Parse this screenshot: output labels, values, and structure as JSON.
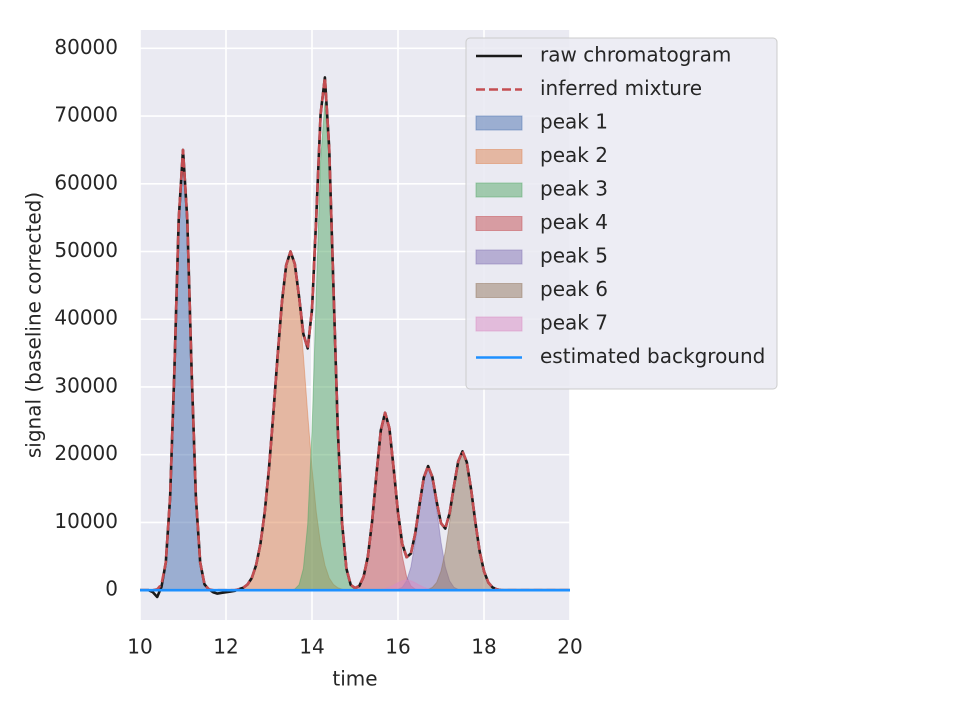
{
  "chart_data": {
    "type": "line",
    "xlabel": "time",
    "ylabel": "signal (baseline corrected)",
    "xlim": [
      10,
      20
    ],
    "ylim": [
      -4400,
      82700
    ],
    "xticks": [
      10,
      12,
      14,
      16,
      18,
      20
    ],
    "yticks": [
      0,
      10000,
      20000,
      30000,
      40000,
      50000,
      60000,
      70000,
      80000
    ],
    "grid": true,
    "legend": "upper right",
    "x": [
      10,
      10.1,
      10.2,
      10.3,
      10.4,
      10.5,
      10.6,
      10.7,
      10.8,
      10.9,
      11,
      11.1,
      11.2,
      11.3,
      11.4,
      11.5,
      11.6,
      11.7,
      11.8,
      11.9,
      12,
      12.1,
      12.2,
      12.3,
      12.4,
      12.5,
      12.6,
      12.7,
      12.8,
      12.9,
      13,
      13.1,
      13.2,
      13.3,
      13.4,
      13.5,
      13.6,
      13.7,
      13.8,
      13.9,
      14,
      14.1,
      14.2,
      14.3,
      14.4,
      14.5,
      14.6,
      14.7,
      14.8,
      14.9,
      15,
      15.1,
      15.2,
      15.3,
      15.4,
      15.5,
      15.6,
      15.7,
      15.8,
      15.9,
      16,
      16.1,
      16.2,
      16.3,
      16.4,
      16.5,
      16.6,
      16.7,
      16.8,
      16.9,
      17,
      17.1,
      17.2,
      17.3,
      17.4,
      17.5,
      17.6,
      17.7,
      17.8,
      17.9,
      18,
      18.1,
      18.2,
      18.3,
      18.4,
      18.5,
      18.6,
      18.7,
      18.8,
      18.9,
      19,
      19.1,
      19.2,
      19.3,
      19.4,
      19.5,
      19.6,
      19.7,
      19.8,
      19.9,
      20
    ],
    "series": [
      {
        "name": "raw chromatogram",
        "color": "#1a1a1a",
        "style": "line",
        "values": [
          0,
          0,
          0,
          -300,
          -1000,
          500,
          4100,
          13700,
          32500,
          54700,
          65000,
          54700,
          32500,
          13700,
          4100,
          860,
          130,
          -300,
          -500,
          -400,
          -300,
          -200,
          -100,
          140,
          360,
          840,
          1800,
          3700,
          6800,
          11500,
          18000,
          26000,
          34600,
          42500,
          48000,
          50000,
          48160,
          43300,
          37800,
          35700,
          41400,
          55200,
          70300,
          75700,
          65300,
          44540,
          23760,
          9840,
          3200,
          800,
          320,
          630,
          2000,
          5000,
          10300,
          17200,
          23580,
          26200,
          23920,
          17930,
          11500,
          6810,
          4870,
          5410,
          8350,
          12630,
          16620,
          18320,
          16690,
          13050,
          9900,
          9100,
          11370,
          15330,
          19010,
          20500,
          18900,
          14900,
          10000,
          5700,
          2800,
          1150,
          410,
          120,
          0,
          0,
          0,
          0,
          0,
          0,
          0,
          0,
          0,
          0,
          0,
          0,
          0,
          0,
          0,
          0,
          0
        ]
      },
      {
        "name": "inferred mixture",
        "color": "#c44e52",
        "style": "dashed",
        "values": [
          0,
          0,
          0,
          0,
          130,
          860,
          4100,
          13700,
          32500,
          54700,
          65000,
          54700,
          32500,
          13700,
          4100,
          860,
          130,
          0,
          0,
          0,
          0,
          0,
          0,
          140,
          360,
          840,
          1800,
          3700,
          6800,
          11500,
          18000,
          26000,
          34600,
          42500,
          48000,
          50000,
          48160,
          43300,
          37800,
          35700,
          41400,
          55200,
          70300,
          75700,
          65300,
          44540,
          23760,
          9840,
          3200,
          800,
          320,
          630,
          2000,
          5000,
          10300,
          17200,
          23580,
          26200,
          23920,
          17930,
          11500,
          6810,
          4870,
          5410,
          8350,
          12630,
          16620,
          18320,
          16690,
          13050,
          9900,
          9100,
          11370,
          15330,
          19010,
          20500,
          18900,
          14900,
          10000,
          5700,
          2800,
          1150,
          410,
          120,
          0,
          0,
          0,
          0,
          0,
          0,
          0,
          0,
          0,
          0,
          0,
          0,
          0,
          0,
          0,
          0,
          0
        ]
      },
      {
        "name": "peak 1",
        "color": "#4c72b0",
        "style": "area",
        "values": [
          0,
          0,
          0,
          0,
          130,
          860,
          4100,
          13700,
          32500,
          54700,
          65000,
          54700,
          32500,
          13700,
          4100,
          860,
          130,
          0,
          0,
          0,
          0,
          0,
          0,
          0,
          0,
          0,
          0,
          0,
          0,
          0,
          0,
          0,
          0,
          0,
          0,
          0,
          0,
          0,
          0,
          0,
          0,
          0,
          0,
          0,
          0,
          0,
          0,
          0,
          0,
          0,
          0,
          0,
          0,
          0,
          0,
          0,
          0,
          0,
          0,
          0,
          0,
          0,
          0,
          0,
          0,
          0,
          0,
          0,
          0,
          0,
          0,
          0,
          0,
          0,
          0,
          0,
          0,
          0,
          0,
          0,
          0,
          0,
          0,
          0,
          0,
          0,
          0,
          0,
          0,
          0,
          0,
          0,
          0,
          0,
          0,
          0,
          0,
          0,
          0,
          0,
          0
        ]
      },
      {
        "name": "peak 2",
        "color": "#dd8452",
        "style": "area",
        "values": [
          0,
          0,
          0,
          0,
          0,
          0,
          0,
          0,
          0,
          0,
          0,
          0,
          0,
          0,
          0,
          0,
          0,
          0,
          0,
          0,
          0,
          0,
          0,
          140,
          360,
          840,
          1800,
          3700,
          6800,
          11500,
          18000,
          26000,
          34600,
          42500,
          48000,
          50000,
          48000,
          42500,
          34600,
          26000,
          18000,
          11500,
          6800,
          3700,
          1800,
          840,
          360,
          140,
          0,
          0,
          0,
          0,
          0,
          0,
          0,
          0,
          0,
          0,
          0,
          0,
          0,
          0,
          0,
          0,
          0,
          0,
          0,
          0,
          0,
          0,
          0,
          0,
          0,
          0,
          0,
          0,
          0,
          0,
          0,
          0,
          0,
          0,
          0,
          0,
          0,
          0,
          0,
          0,
          0,
          0,
          0,
          0,
          0,
          0,
          0,
          0,
          0,
          0,
          0,
          0,
          0
        ]
      },
      {
        "name": "peak 3",
        "color": "#55a868",
        "style": "area",
        "values": [
          0,
          0,
          0,
          0,
          0,
          0,
          0,
          0,
          0,
          0,
          0,
          0,
          0,
          0,
          0,
          0,
          0,
          0,
          0,
          0,
          0,
          0,
          0,
          0,
          0,
          0,
          0,
          0,
          0,
          0,
          0,
          0,
          0,
          0,
          0,
          0,
          160,
          800,
          3200,
          9700,
          23400,
          43700,
          63500,
          72000,
          63500,
          43700,
          23400,
          9700,
          3200,
          800,
          160,
          0,
          0,
          0,
          0,
          0,
          0,
          0,
          0,
          0,
          0,
          0,
          0,
          0,
          0,
          0,
          0,
          0,
          0,
          0,
          0,
          0,
          0,
          0,
          0,
          0,
          0,
          0,
          0,
          0,
          0,
          0,
          0,
          0,
          0,
          0,
          0,
          0,
          0,
          0,
          0,
          0,
          0,
          0,
          0,
          0,
          0,
          0,
          0,
          0,
          0
        ]
      },
      {
        "name": "peak 4",
        "color": "#c44e52",
        "style": "area",
        "values": [
          0,
          0,
          0,
          0,
          0,
          0,
          0,
          0,
          0,
          0,
          0,
          0,
          0,
          0,
          0,
          0,
          0,
          0,
          0,
          0,
          0,
          0,
          0,
          0,
          0,
          0,
          0,
          0,
          0,
          0,
          0,
          0,
          0,
          0,
          0,
          0,
          0,
          0,
          0,
          0,
          0,
          0,
          0,
          0,
          0,
          0,
          0,
          0,
          0,
          0,
          160,
          630,
          2000,
          5000,
          10300,
          17200,
          23500,
          26000,
          23500,
          17200,
          10300,
          5000,
          2000,
          630,
          160,
          0,
          0,
          0,
          0,
          0,
          0,
          0,
          0,
          0,
          0,
          0,
          0,
          0,
          0,
          0,
          0,
          0,
          0,
          0,
          0,
          0,
          0,
          0,
          0,
          0,
          0,
          0,
          0,
          0,
          0,
          0,
          0,
          0,
          0,
          0,
          0
        ]
      },
      {
        "name": "peak 5",
        "color": "#8172b3",
        "style": "area",
        "values": [
          0,
          0,
          0,
          0,
          0,
          0,
          0,
          0,
          0,
          0,
          0,
          0,
          0,
          0,
          0,
          0,
          0,
          0,
          0,
          0,
          0,
          0,
          0,
          0,
          0,
          0,
          0,
          0,
          0,
          0,
          0,
          0,
          0,
          0,
          0,
          0,
          0,
          0,
          0,
          0,
          0,
          0,
          0,
          0,
          0,
          0,
          0,
          0,
          0,
          0,
          0,
          0,
          0,
          0,
          0,
          0,
          0,
          0,
          0,
          0,
          110,
          430,
          1370,
          3400,
          7100,
          11900,
          16200,
          18000,
          16200,
          11900,
          7100,
          3400,
          1370,
          430,
          110,
          0,
          0,
          0,
          0,
          0,
          0,
          0,
          0,
          0,
          0,
          0,
          0,
          0,
          0,
          0,
          0,
          0,
          0,
          0,
          0,
          0,
          0,
          0,
          0,
          0,
          0
        ]
      },
      {
        "name": "peak 6",
        "color": "#937860",
        "style": "area",
        "values": [
          0,
          0,
          0,
          0,
          0,
          0,
          0,
          0,
          0,
          0,
          0,
          0,
          0,
          0,
          0,
          0,
          0,
          0,
          0,
          0,
          0,
          0,
          0,
          0,
          0,
          0,
          0,
          0,
          0,
          0,
          0,
          0,
          0,
          0,
          0,
          0,
          0,
          0,
          0,
          0,
          0,
          0,
          0,
          0,
          0,
          0,
          0,
          0,
          0,
          0,
          0,
          0,
          0,
          0,
          0,
          0,
          0,
          0,
          0,
          0,
          0,
          0,
          0,
          0,
          0,
          0,
          0,
          120,
          410,
          1150,
          2800,
          5700,
          10000,
          14900,
          18900,
          20500,
          18900,
          14900,
          10000,
          5700,
          2800,
          1150,
          410,
          120,
          0,
          0,
          0,
          0,
          0,
          0,
          0,
          0,
          0,
          0,
          0,
          0,
          0,
          0,
          0,
          0,
          0
        ]
      },
      {
        "name": "peak 7",
        "color": "#da8bc3",
        "style": "area",
        "values": [
          0,
          0,
          0,
          0,
          0,
          0,
          0,
          0,
          0,
          0,
          0,
          0,
          0,
          0,
          0,
          0,
          0,
          0,
          0,
          0,
          0,
          0,
          0,
          0,
          0,
          0,
          0,
          0,
          0,
          0,
          0,
          0,
          0,
          0,
          0,
          0,
          0,
          0,
          0,
          0,
          0,
          0,
          0,
          0,
          0,
          0,
          0,
          0,
          0,
          0,
          0,
          0,
          0,
          0,
          0,
          0,
          80,
          200,
          420,
          730,
          1090,
          1380,
          1500,
          1380,
          1090,
          730,
          420,
          200,
          80,
          0,
          0,
          0,
          0,
          0,
          0,
          0,
          0,
          0,
          0,
          0,
          0,
          0,
          0,
          0,
          0,
          0,
          0,
          0,
          0,
          0,
          0,
          0,
          0,
          0,
          0,
          0,
          0,
          0,
          0,
          0,
          0
        ]
      },
      {
        "name": "estimated background",
        "color": "#1e90ff",
        "style": "line",
        "values": [
          0,
          0,
          0,
          0,
          0,
          0,
          0,
          0,
          0,
          0,
          0,
          0,
          0,
          0,
          0,
          0,
          0,
          0,
          0,
          0,
          0,
          0,
          0,
          0,
          0,
          0,
          0,
          0,
          0,
          0,
          0,
          0,
          0,
          0,
          0,
          0,
          0,
          0,
          0,
          0,
          0,
          0,
          0,
          0,
          0,
          0,
          0,
          0,
          0,
          0,
          0,
          0,
          0,
          0,
          0,
          0,
          0,
          0,
          0,
          0,
          0,
          0,
          0,
          0,
          0,
          0,
          0,
          0,
          0,
          0,
          0,
          0,
          0,
          0,
          0,
          0,
          0,
          0,
          0,
          0,
          0,
          0,
          0,
          0,
          0,
          0,
          0,
          0,
          0,
          0,
          0,
          0,
          0,
          0,
          0,
          0,
          0,
          0,
          0,
          0,
          0
        ]
      }
    ]
  }
}
